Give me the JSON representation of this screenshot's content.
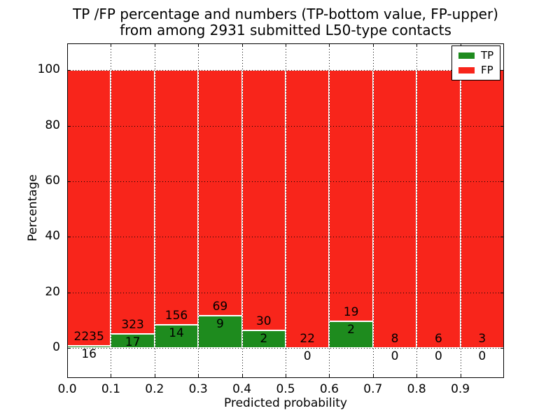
{
  "figure": {
    "title_line1": "TP /FP percentage and numbers (TP-bottom value, FP-upper)",
    "title_line2": "from among 2931 submitted L50-type contacts"
  },
  "chart_data": {
    "type": "bar",
    "subtype": "stacked-percentage",
    "title": "TP /FP percentage and numbers (TP-bottom value, FP-upper)\nfrom among 2931 submitted L50-type contacts",
    "xlabel": "Predicted probability",
    "ylabel": "Percentage",
    "total_contacts_shown_in_title": 2931,
    "grid": "dotted",
    "bar_edge_color": "#ffffff",
    "xlim": [
      0.0,
      1.0
    ],
    "ylim": [
      -10.8,
      109.6
    ],
    "x_ticks": [
      0,
      0.1,
      0.2,
      0.3,
      0.4,
      0.5,
      0.6,
      0.7,
      0.8,
      0.9
    ],
    "x_tick_labels": [
      "0.0",
      "0.1",
      "0.2",
      "0.3",
      "0.4",
      "0.5",
      "0.6",
      "0.7",
      "0.8",
      "0.9"
    ],
    "y_ticks": [
      0,
      20,
      40,
      60,
      80,
      100
    ],
    "y_tick_labels": [
      "0",
      "20",
      "40",
      "60",
      "80",
      "100"
    ],
    "bin_edges": [
      0.0,
      0.1,
      0.2,
      0.3,
      0.4,
      0.5,
      0.6,
      0.7,
      0.8,
      0.9,
      1.0
    ],
    "legend_location": "upper right",
    "series": [
      {
        "name": "TP",
        "color": "#1e8b1e",
        "counts": [
          16,
          17,
          14,
          9,
          2,
          0,
          2,
          0,
          0,
          0
        ],
        "pct_heights": [
          0.71,
          5.0,
          8.24,
          11.54,
          6.25,
          0.0,
          9.52,
          0.0,
          0.0,
          0.0
        ]
      },
      {
        "name": "FP",
        "color": "#f8251b",
        "counts": [
          2235,
          323,
          156,
          69,
          30,
          22,
          19,
          8,
          6,
          3
        ],
        "pct_heights": [
          99.29,
          95.0,
          91.76,
          88.46,
          93.75,
          100.0,
          90.48,
          100.0,
          100.0,
          100.0
        ]
      }
    ]
  }
}
